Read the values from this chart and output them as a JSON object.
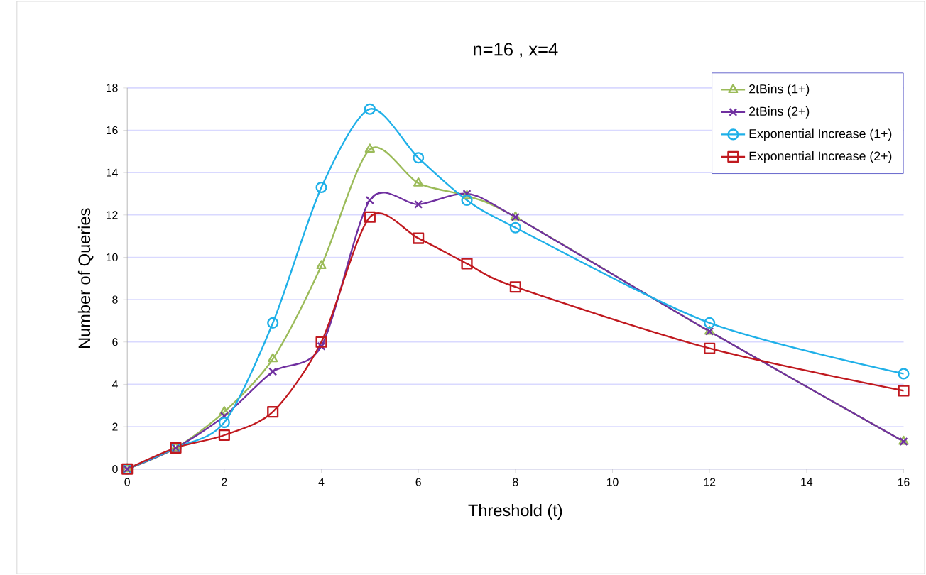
{
  "chart_data": {
    "type": "line",
    "title": "n=16 , x=4",
    "xlabel": "Threshold (t)",
    "ylabel": "Number of Queries",
    "x": [
      0,
      1,
      2,
      3,
      4,
      5,
      6,
      7,
      8,
      12,
      16
    ],
    "series": [
      {
        "name": "2tBins (1+)",
        "color": "#9bbb59",
        "marker": "triangle",
        "values": [
          0,
          1.0,
          2.7,
          5.2,
          9.6,
          15.1,
          13.5,
          12.9,
          11.9,
          6.5,
          1.3
        ]
      },
      {
        "name": "2tBins (2+)",
        "color": "#7030a0",
        "marker": "cross",
        "values": [
          0,
          1.0,
          2.5,
          4.6,
          5.8,
          12.7,
          12.5,
          13.0,
          11.9,
          6.5,
          1.3
        ]
      },
      {
        "name": "Exponential Increase (1+)",
        "color": "#1fb0e8",
        "marker": "circle",
        "values": [
          0,
          1.0,
          2.2,
          6.9,
          13.3,
          17.0,
          14.7,
          12.7,
          11.4,
          6.9,
          4.5
        ]
      },
      {
        "name": "Exponential Increase (2+)",
        "color": "#c0191f",
        "marker": "square",
        "values": [
          0,
          1.0,
          1.6,
          2.7,
          6.0,
          11.9,
          10.9,
          9.7,
          8.6,
          5.7,
          3.7
        ]
      }
    ],
    "xlim": [
      0,
      16
    ],
    "xticks": [
      0,
      2,
      4,
      6,
      8,
      10,
      12,
      14,
      16
    ],
    "ylim": [
      0,
      18
    ],
    "yticks": [
      0,
      2,
      4,
      6,
      8,
      10,
      12,
      14,
      16,
      18
    ],
    "grid": "y",
    "legend": "top right",
    "line_style": "solid"
  }
}
